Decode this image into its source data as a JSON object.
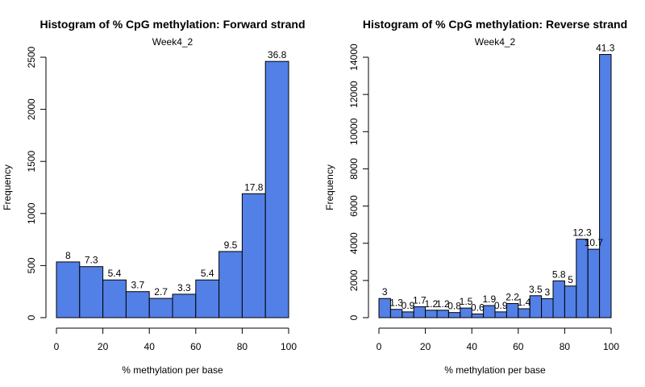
{
  "chart_data": [
    {
      "type": "bar",
      "title": "Histogram of % CpG methylation: Forward strand",
      "subtitle": "Week4_2",
      "xlabel": "% methylation per base",
      "ylabel": "Frequency",
      "xlim": [
        0,
        100
      ],
      "ylim": [
        0,
        2500
      ],
      "xticks": [
        0,
        20,
        40,
        60,
        80,
        100
      ],
      "yticks": [
        0,
        500,
        1000,
        1500,
        2000,
        2500
      ],
      "bin_width": 10,
      "bins": [
        0,
        10,
        20,
        30,
        40,
        50,
        60,
        70,
        80,
        90
      ],
      "values": [
        535,
        490,
        362,
        250,
        185,
        225,
        362,
        635,
        1190,
        2460
      ],
      "bar_labels": [
        "8",
        "7.3",
        "5.4",
        "3.7",
        "2.7",
        "3.3",
        "5.4",
        "9.5",
        "17.8",
        "36.8"
      ],
      "color": "#5380E6"
    },
    {
      "type": "bar",
      "title": "Histogram of % CpG methylation: Reverse strand",
      "subtitle": "Week4_2",
      "xlabel": "% methylation per base",
      "ylabel": "Frequency",
      "xlim": [
        0,
        100
      ],
      "ylim": [
        0,
        14000
      ],
      "xticks": [
        0,
        20,
        40,
        60,
        80,
        100
      ],
      "yticks": [
        0,
        2000,
        4000,
        6000,
        8000,
        10000,
        12000,
        14000
      ],
      "bin_width": 5,
      "bins": [
        0,
        5,
        10,
        15,
        20,
        25,
        30,
        35,
        40,
        45,
        50,
        55,
        60,
        65,
        70,
        75,
        80,
        85,
        90,
        95
      ],
      "values": [
        1030,
        445,
        310,
        590,
        400,
        400,
        275,
        515,
        200,
        650,
        310,
        760,
        480,
        1180,
        1020,
        1980,
        1700,
        4220,
        3680,
        14150
      ],
      "bar_labels": [
        "3",
        "1.3",
        "0.9",
        "1.7",
        "1.2",
        "1.2",
        "0.8",
        "1.5",
        "0.6",
        "1.9",
        "0.9",
        "2.2",
        "1.4",
        "3.5",
        "3",
        "5.8",
        "5",
        "12.3",
        "10.7",
        "41.3"
      ],
      "color": "#5380E6"
    }
  ]
}
